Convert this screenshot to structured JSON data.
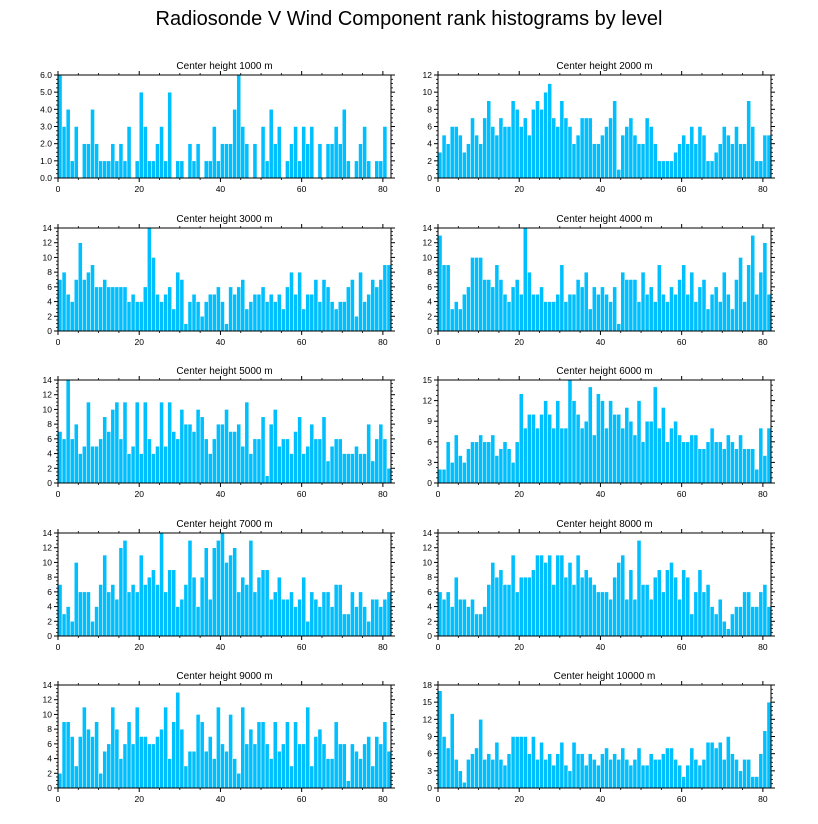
{
  "title": "Radiosonde V Wind Component rank histograms by level",
  "colors": {
    "bar": "#00BFFF",
    "bar_edge": "#ffffff",
    "axis": "#000000"
  },
  "chart_data": [
    {
      "type": "bar",
      "title": "Center height 1000 m",
      "xlim": [
        0,
        82
      ],
      "ylim": [
        0,
        6
      ],
      "yticks": [
        0,
        1,
        2,
        3,
        4,
        5,
        6
      ],
      "ytick_labels": [
        "0.0",
        "1.0",
        "2.0",
        "3.0",
        "4.0",
        "5.0",
        "6.0"
      ],
      "xticks": [
        0,
        20,
        40,
        60,
        80
      ],
      "values": [
        6,
        3,
        4,
        1,
        3,
        0,
        2,
        2,
        4,
        2,
        1,
        1,
        1,
        2,
        1,
        2,
        1,
        3,
        0,
        1,
        5,
        3,
        1,
        1,
        2,
        3,
        1,
        5,
        0,
        1,
        1,
        0,
        2,
        1,
        2,
        0,
        1,
        1,
        3,
        1,
        2,
        2,
        2,
        4,
        6,
        3,
        2,
        0,
        2,
        0,
        3,
        1,
        4,
        2,
        3,
        0,
        1,
        2,
        3,
        1,
        3,
        2,
        3,
        0,
        2,
        0,
        2,
        2,
        3,
        2,
        4,
        1,
        0,
        1,
        2,
        3,
        1,
        0,
        1,
        1,
        3,
        0
      ]
    },
    {
      "type": "bar",
      "title": "Center height 2000 m",
      "xlim": [
        0,
        82
      ],
      "ylim": [
        0,
        12
      ],
      "yticks": [
        0,
        2,
        4,
        6,
        8,
        10,
        12
      ],
      "ytick_labels": [
        "0",
        "2",
        "4",
        "6",
        "8",
        "10",
        "12"
      ],
      "xticks": [
        0,
        20,
        40,
        60,
        80
      ],
      "values": [
        3,
        5,
        4,
        6,
        6,
        5,
        3,
        4,
        7,
        5,
        4,
        7,
        9,
        6,
        5,
        7,
        6,
        6,
        9,
        8,
        6,
        7,
        5,
        8,
        9,
        8,
        10,
        11,
        7,
        6,
        9,
        7,
        6,
        4,
        5,
        7,
        7,
        7,
        4,
        4,
        5,
        6,
        7,
        9,
        1,
        5,
        6,
        7,
        5,
        4,
        4,
        7,
        6,
        4,
        2,
        2,
        2,
        2,
        3,
        4,
        5,
        4,
        6,
        4,
        6,
        5,
        2,
        2,
        3,
        4,
        6,
        5,
        4,
        6,
        4,
        4,
        9,
        6,
        2,
        2,
        5,
        5
      ]
    },
    {
      "type": "bar",
      "title": "Center height 3000 m",
      "xlim": [
        0,
        82
      ],
      "ylim": [
        0,
        14
      ],
      "yticks": [
        0,
        2,
        4,
        6,
        8,
        10,
        12,
        14
      ],
      "ytick_labels": [
        "0",
        "2",
        "4",
        "6",
        "8",
        "10",
        "12",
        "14"
      ],
      "xticks": [
        0,
        20,
        40,
        60,
        80
      ],
      "values": [
        7,
        8,
        5,
        4,
        7,
        12,
        7,
        8,
        9,
        6,
        6,
        7,
        6,
        6,
        6,
        6,
        6,
        4,
        5,
        4,
        4,
        6,
        14,
        10,
        5,
        4,
        5,
        6,
        3,
        8,
        7,
        1,
        4,
        5,
        4,
        2,
        4,
        5,
        5,
        6,
        4,
        1,
        6,
        5,
        6,
        7,
        3,
        4,
        5,
        5,
        6,
        4,
        5,
        4,
        5,
        3,
        6,
        8,
        5,
        8,
        3,
        5,
        5,
        7,
        4,
        7,
        6,
        4,
        3,
        4,
        4,
        6,
        7,
        2,
        8,
        4,
        5,
        7,
        6,
        7,
        9,
        9
      ]
    },
    {
      "type": "bar",
      "title": "Center height 4000 m",
      "xlim": [
        0,
        82
      ],
      "ylim": [
        0,
        14
      ],
      "yticks": [
        0,
        2,
        4,
        6,
        8,
        10,
        12,
        14
      ],
      "ytick_labels": [
        "0",
        "2",
        "4",
        "6",
        "8",
        "10",
        "12",
        "14"
      ],
      "xticks": [
        0,
        20,
        40,
        60,
        80
      ],
      "values": [
        13,
        9,
        9,
        3,
        4,
        3,
        5,
        6,
        10,
        10,
        10,
        7,
        7,
        6,
        9,
        7,
        5,
        4,
        6,
        7,
        5,
        14,
        8,
        5,
        5,
        6,
        4,
        4,
        4,
        5,
        9,
        4,
        5,
        5,
        7,
        6,
        8,
        3,
        6,
        5,
        6,
        5,
        4,
        6,
        1,
        8,
        7,
        7,
        7,
        4,
        8,
        5,
        6,
        4,
        9,
        5,
        4,
        6,
        5,
        7,
        9,
        5,
        8,
        4,
        6,
        7,
        3,
        5,
        6,
        4,
        8,
        5,
        3,
        7,
        10,
        4,
        9,
        13,
        5,
        8,
        12,
        5
      ]
    },
    {
      "type": "bar",
      "title": "Center height 5000 m",
      "xlim": [
        0,
        82
      ],
      "ylim": [
        0,
        14
      ],
      "yticks": [
        0,
        2,
        4,
        6,
        8,
        10,
        12,
        14
      ],
      "ytick_labels": [
        "0",
        "2",
        "4",
        "6",
        "8",
        "10",
        "12",
        "14"
      ],
      "xticks": [
        0,
        20,
        40,
        60,
        80
      ],
      "values": [
        7,
        6,
        14,
        6,
        8,
        4,
        5,
        11,
        5,
        5,
        6,
        9,
        7,
        10,
        11,
        6,
        11,
        4,
        5,
        11,
        4,
        11,
        6,
        4,
        5,
        11,
        5,
        11,
        7,
        6,
        10,
        8,
        8,
        7,
        10,
        9,
        6,
        4,
        6,
        8,
        8,
        10,
        7,
        7,
        8,
        5,
        11,
        4,
        6,
        6,
        9,
        1,
        8,
        10,
        5,
        6,
        6,
        4,
        7,
        9,
        4,
        5,
        8,
        6,
        6,
        9,
        3,
        5,
        6,
        6,
        4,
        4,
        4,
        5,
        4,
        4,
        8,
        3,
        6,
        8,
        6,
        2
      ]
    },
    {
      "type": "bar",
      "title": "Center height 6000 m",
      "xlim": [
        0,
        82
      ],
      "ylim": [
        0,
        15
      ],
      "yticks": [
        0,
        3,
        6,
        9,
        12,
        15
      ],
      "ytick_labels": [
        "0",
        "3",
        "6",
        "9",
        "12",
        "15"
      ],
      "xticks": [
        0,
        20,
        40,
        60,
        80
      ],
      "values": [
        2,
        2,
        6,
        3,
        7,
        4,
        3,
        5,
        6,
        6,
        7,
        6,
        6,
        7,
        4,
        5,
        6,
        5,
        3,
        6,
        13,
        8,
        10,
        10,
        8,
        10,
        12,
        10,
        8,
        12,
        8,
        8,
        15,
        12,
        10,
        8,
        9,
        14,
        7,
        13,
        12,
        8,
        12,
        10,
        10,
        8,
        11,
        9,
        7,
        12,
        6,
        9,
        9,
        14,
        8,
        11,
        6,
        8,
        9,
        7,
        6,
        6,
        7,
        7,
        5,
        5,
        6,
        8,
        6,
        6,
        5,
        7,
        6,
        5,
        7,
        5,
        5,
        5,
        2,
        8,
        4,
        8
      ]
    },
    {
      "type": "bar",
      "title": "Center height 7000 m",
      "xlim": [
        0,
        82
      ],
      "ylim": [
        0,
        14
      ],
      "yticks": [
        0,
        2,
        4,
        6,
        8,
        10,
        12,
        14
      ],
      "ytick_labels": [
        "0",
        "2",
        "4",
        "6",
        "8",
        "10",
        "12",
        "14"
      ],
      "xticks": [
        0,
        20,
        40,
        60,
        80
      ],
      "values": [
        7,
        3,
        4,
        2,
        10,
        6,
        6,
        6,
        2,
        4,
        7,
        11,
        6,
        7,
        5,
        12,
        13,
        6,
        7,
        6,
        11,
        7,
        8,
        9,
        7,
        14,
        6,
        9,
        9,
        4,
        5,
        7,
        13,
        8,
        4,
        8,
        12,
        5,
        12,
        13,
        14,
        10,
        11,
        12,
        6,
        8,
        7,
        13,
        6,
        8,
        9,
        9,
        5,
        6,
        8,
        5,
        5,
        6,
        4,
        5,
        8,
        2,
        6,
        5,
        4,
        6,
        6,
        4,
        7,
        7,
        3,
        3,
        6,
        4,
        6,
        4,
        2,
        5,
        5,
        4,
        5,
        6
      ]
    },
    {
      "type": "bar",
      "title": "Center height 8000 m",
      "xlim": [
        0,
        82
      ],
      "ylim": [
        0,
        14
      ],
      "yticks": [
        0,
        2,
        4,
        6,
        8,
        10,
        12,
        14
      ],
      "ytick_labels": [
        "0",
        "2",
        "4",
        "6",
        "8",
        "10",
        "12",
        "14"
      ],
      "xticks": [
        0,
        20,
        40,
        60,
        80
      ],
      "values": [
        6,
        5,
        6,
        4,
        8,
        5,
        5,
        4,
        5,
        3,
        3,
        4,
        7,
        10,
        8,
        9,
        7,
        7,
        11,
        6,
        8,
        8,
        8,
        9,
        11,
        11,
        10,
        11,
        7,
        11,
        11,
        8,
        10,
        7,
        11,
        8,
        9,
        8,
        7,
        6,
        6,
        6,
        5,
        8,
        10,
        11,
        5,
        9,
        5,
        13,
        7,
        7,
        5,
        8,
        9,
        6,
        9,
        10,
        8,
        5,
        9,
        8,
        3,
        6,
        9,
        6,
        7,
        4,
        3,
        5,
        2,
        1,
        3,
        4,
        4,
        6,
        6,
        4,
        4,
        6,
        7,
        4
      ]
    },
    {
      "type": "bar",
      "title": "Center height 9000 m",
      "xlim": [
        0,
        82
      ],
      "ylim": [
        0,
        14
      ],
      "yticks": [
        0,
        2,
        4,
        6,
        8,
        10,
        12,
        14
      ],
      "ytick_labels": [
        "0",
        "2",
        "4",
        "6",
        "8",
        "10",
        "12",
        "14"
      ],
      "xticks": [
        0,
        20,
        40,
        60,
        80
      ],
      "values": [
        2,
        9,
        9,
        7,
        3,
        7,
        11,
        8,
        7,
        9,
        2,
        5,
        6,
        11,
        8,
        4,
        6,
        9,
        6,
        11,
        7,
        7,
        6,
        6,
        7,
        8,
        11,
        4,
        9,
        13,
        8,
        3,
        5,
        5,
        10,
        9,
        5,
        7,
        4,
        11,
        6,
        5,
        10,
        4,
        2,
        11,
        6,
        8,
        6,
        9,
        9,
        6,
        4,
        9,
        5,
        6,
        9,
        3,
        9,
        6,
        6,
        11,
        3,
        7,
        8,
        6,
        4,
        4,
        9,
        6,
        6,
        1,
        6,
        5,
        4,
        6,
        7,
        3,
        7,
        6,
        9,
        5
      ]
    },
    {
      "type": "bar",
      "title": "Center height 10000 m",
      "xlim": [
        0,
        82
      ],
      "ylim": [
        0,
        18
      ],
      "yticks": [
        0,
        3,
        6,
        9,
        12,
        15,
        18
      ],
      "ytick_labels": [
        "0",
        "3",
        "6",
        "9",
        "12",
        "15",
        "18"
      ],
      "xticks": [
        0,
        20,
        40,
        60,
        80
      ],
      "values": [
        17,
        9,
        7,
        13,
        5,
        3,
        1,
        5,
        6,
        7,
        12,
        5,
        6,
        5,
        8,
        5,
        4,
        6,
        9,
        9,
        9,
        9,
        6,
        9,
        5,
        8,
        5,
        6,
        4,
        6,
        8,
        4,
        3,
        8,
        6,
        6,
        4,
        6,
        5,
        4,
        6,
        7,
        5,
        6,
        5,
        7,
        5,
        4,
        5,
        7,
        4,
        4,
        6,
        5,
        5,
        6,
        7,
        7,
        5,
        4,
        2,
        4,
        7,
        5,
        4,
        5,
        8,
        8,
        7,
        8,
        5,
        9,
        6,
        5,
        3,
        5,
        5,
        2,
        2,
        6,
        10,
        15
      ]
    }
  ]
}
